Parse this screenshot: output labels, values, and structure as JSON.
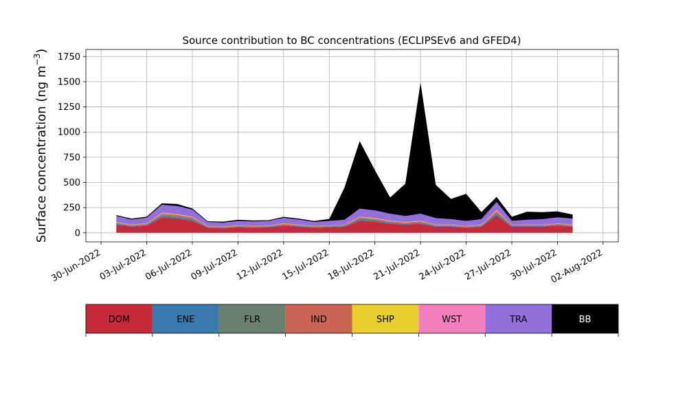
{
  "chart_data": {
    "type": "area",
    "stacked": true,
    "title": "Source contribution to BC concentrations (ECLIPSEv6 and GFED4)",
    "xlabel": "",
    "ylabel_main": "Surface concentration (ng m",
    "ylabel_sup": "−3",
    "ylabel_close": ")",
    "xlim": [
      "2022-06-29",
      "2022-08-03"
    ],
    "ylim": [
      -90,
      1820
    ],
    "grid": true,
    "x_ticks": [
      "30-Jun-2022",
      "03-Jul-2022",
      "06-Jul-2022",
      "09-Jul-2022",
      "12-Jul-2022",
      "15-Jul-2022",
      "18-Jul-2022",
      "21-Jul-2022",
      "24-Jul-2022",
      "27-Jul-2022",
      "30-Jul-2022",
      "02-Aug-2022"
    ],
    "x_tick_dates": [
      "2022-06-30",
      "2022-07-03",
      "2022-07-06",
      "2022-07-09",
      "2022-07-12",
      "2022-07-15",
      "2022-07-18",
      "2022-07-21",
      "2022-07-24",
      "2022-07-27",
      "2022-07-30",
      "2022-08-02"
    ],
    "y_ticks": [
      0,
      250,
      500,
      750,
      1000,
      1250,
      1500,
      1750
    ],
    "x": [
      "2022-07-01",
      "2022-07-02",
      "2022-07-03",
      "2022-07-04",
      "2022-07-05",
      "2022-07-06",
      "2022-07-07",
      "2022-07-08",
      "2022-07-09",
      "2022-07-10",
      "2022-07-11",
      "2022-07-12",
      "2022-07-13",
      "2022-07-14",
      "2022-07-15",
      "2022-07-16",
      "2022-07-17",
      "2022-07-18",
      "2022-07-19",
      "2022-07-20",
      "2022-07-21",
      "2022-07-22",
      "2022-07-23",
      "2022-07-24",
      "2022-07-25",
      "2022-07-26",
      "2022-07-27",
      "2022-07-28",
      "2022-07-29",
      "2022-07-30",
      "2022-07-31"
    ],
    "series": [
      {
        "name": "DOM",
        "color": "#c62a3a",
        "values": [
          80,
          60,
          70,
          150,
          140,
          120,
          50,
          45,
          55,
          50,
          55,
          70,
          60,
          50,
          55,
          60,
          120,
          110,
          90,
          80,
          90,
          60,
          60,
          50,
          60,
          170,
          60,
          60,
          60,
          70,
          60
        ]
      },
      {
        "name": "ENE",
        "color": "#3a78b0",
        "values": [
          8,
          6,
          7,
          15,
          14,
          12,
          5,
          5,
          5,
          5,
          5,
          7,
          6,
          5,
          6,
          6,
          12,
          11,
          9,
          8,
          9,
          6,
          6,
          5,
          6,
          17,
          6,
          6,
          6,
          7,
          6
        ]
      },
      {
        "name": "FLR",
        "color": "#6b7f6e",
        "values": [
          6,
          5,
          6,
          10,
          10,
          9,
          4,
          4,
          4,
          4,
          4,
          5,
          5,
          4,
          4,
          4,
          9,
          8,
          7,
          6,
          7,
          5,
          5,
          4,
          5,
          12,
          4,
          4,
          4,
          5,
          5
        ]
      },
      {
        "name": "IND",
        "color": "#c96554",
        "values": [
          8,
          6,
          7,
          15,
          14,
          12,
          5,
          5,
          5,
          5,
          5,
          7,
          6,
          5,
          5,
          6,
          12,
          11,
          9,
          8,
          9,
          6,
          6,
          5,
          6,
          17,
          6,
          6,
          6,
          7,
          6
        ]
      },
      {
        "name": "SHP",
        "color": "#e8cf2e",
        "values": [
          2,
          2,
          2,
          3,
          3,
          3,
          1,
          1,
          1,
          1,
          1,
          2,
          2,
          1,
          1,
          1,
          3,
          3,
          2,
          2,
          2,
          2,
          2,
          1,
          2,
          4,
          1,
          1,
          2,
          2,
          2
        ]
      },
      {
        "name": "WST",
        "color": "#f380be",
        "values": [
          3,
          2,
          3,
          5,
          5,
          4,
          2,
          2,
          2,
          2,
          2,
          2,
          2,
          2,
          2,
          2,
          4,
          4,
          3,
          3,
          3,
          2,
          2,
          2,
          2,
          6,
          2,
          2,
          2,
          2,
          2
        ]
      },
      {
        "name": "TRA",
        "color": "#9370db",
        "values": [
          60,
          50,
          55,
          80,
          80,
          70,
          40,
          38,
          45,
          45,
          45,
          55,
          50,
          40,
          45,
          50,
          80,
          75,
          70,
          60,
          70,
          65,
          55,
          50,
          55,
          80,
          40,
          50,
          55,
          60,
          60
        ]
      },
      {
        "name": "BB",
        "color": "#000000",
        "values": [
          8,
          10,
          10,
          15,
          20,
          12,
          8,
          10,
          12,
          10,
          8,
          10,
          10,
          10,
          20,
          320,
          670,
          400,
          160,
          320,
          1300,
          330,
          200,
          270,
          70,
          50,
          40,
          80,
          70,
          60,
          40
        ]
      }
    ],
    "legend_position": "bottom"
  }
}
